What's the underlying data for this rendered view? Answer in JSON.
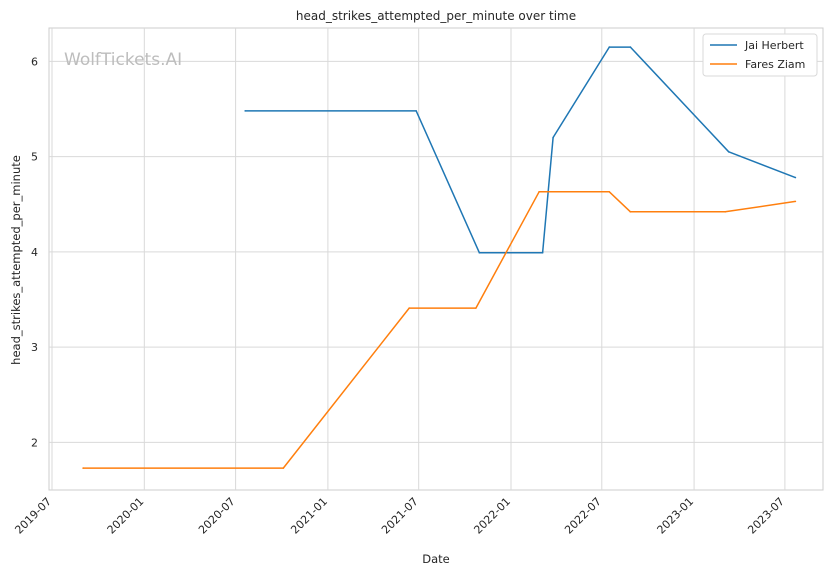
{
  "chart_data": {
    "type": "line",
    "title": "head_strikes_attempted_per_minute over time",
    "xlabel": "Date",
    "ylabel": "head_strikes_attempted_per_minute",
    "watermark": "WolfTickets.AI",
    "x_ticks": [
      "2019-07",
      "2020-01",
      "2020-07",
      "2021-01",
      "2021-07",
      "2022-01",
      "2022-07",
      "2023-01",
      "2023-07"
    ],
    "y_ticks": [
      2,
      3,
      4,
      5,
      6
    ],
    "xlim": [
      "2019-06-25",
      "2023-09-15"
    ],
    "ylim": [
      1.5,
      6.35
    ],
    "grid": true,
    "legend_position": "top-right",
    "series": [
      {
        "name": "Jai Herbert",
        "color": "#1f77b4",
        "points": [
          {
            "x": "2020-07-20",
            "y": 5.48
          },
          {
            "x": "2021-06-26",
            "y": 5.48
          },
          {
            "x": "2021-10-30",
            "y": 3.99
          },
          {
            "x": "2022-03-05",
            "y": 3.99
          },
          {
            "x": "2022-03-26",
            "y": 5.2
          },
          {
            "x": "2022-07-16",
            "y": 6.15
          },
          {
            "x": "2022-08-27",
            "y": 6.15
          },
          {
            "x": "2023-03-11",
            "y": 5.05
          },
          {
            "x": "2023-07-22",
            "y": 4.78
          }
        ]
      },
      {
        "name": "Fares Ziam",
        "color": "#ff7f0e",
        "points": [
          {
            "x": "2019-09-01",
            "y": 1.73
          },
          {
            "x": "2020-10-04",
            "y": 1.73
          },
          {
            "x": "2021-06-12",
            "y": 3.41
          },
          {
            "x": "2021-10-23",
            "y": 3.41
          },
          {
            "x": "2022-02-26",
            "y": 4.63
          },
          {
            "x": "2022-07-16",
            "y": 4.63
          },
          {
            "x": "2022-08-27",
            "y": 4.42
          },
          {
            "x": "2023-03-04",
            "y": 4.42
          },
          {
            "x": "2023-07-22",
            "y": 4.53
          }
        ]
      }
    ]
  }
}
